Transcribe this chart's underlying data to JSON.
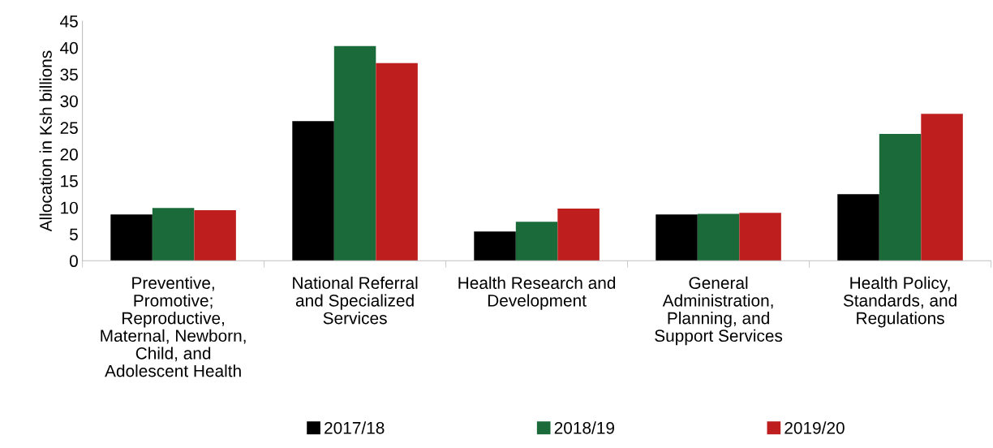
{
  "chart_data": {
    "type": "bar",
    "ylabel": "Allocation in Ksh billions",
    "categories": [
      "Preventive,\nPromotive;\nReproductive,\nMaternal, Newborn,\nChild, and\nAdolescent Health",
      "National Referral\nand Specialized\nServices",
      "Health Research and\nDevelopment",
      "General\nAdministration,\nPlanning, and\nSupport Services",
      "Health Policy,\nStandards, and\nRegulations"
    ],
    "series": [
      {
        "name": "2017/18",
        "color": "#000000",
        "values": [
          8.7,
          26.2,
          5.5,
          8.7,
          12.5
        ]
      },
      {
        "name": "2018/19",
        "color": "#1b6b3a",
        "values": [
          9.9,
          40.3,
          7.3,
          8.8,
          23.8
        ]
      },
      {
        "name": "2019/20",
        "color": "#be1e1e",
        "values": [
          9.5,
          37.1,
          9.8,
          9.0,
          27.6
        ]
      }
    ],
    "ylim": [
      0,
      45
    ],
    "yticks": [
      0,
      5,
      10,
      15,
      20,
      25,
      30,
      35,
      40,
      45
    ],
    "grid": false,
    "legend": "bottom"
  }
}
